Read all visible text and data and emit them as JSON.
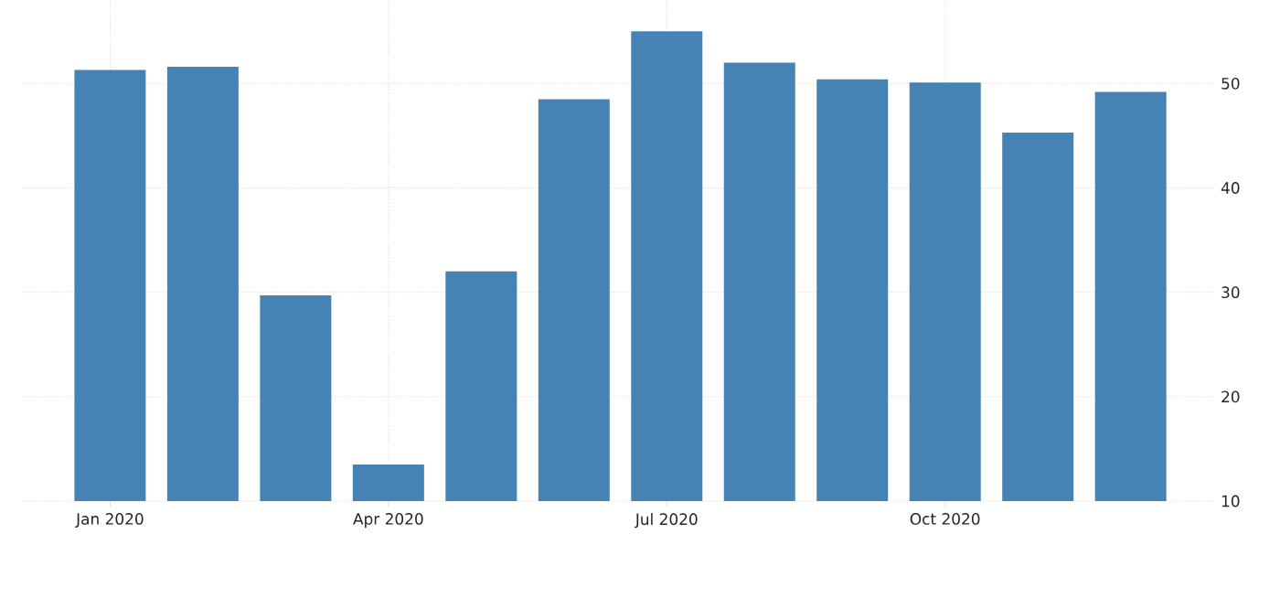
{
  "chart_data": {
    "type": "bar",
    "categories": [
      "Jan 2020",
      null,
      null,
      "Apr 2020",
      null,
      null,
      "Jul 2020",
      null,
      null,
      "Oct 2020",
      null,
      null
    ],
    "values": [
      51.3,
      51.6,
      29.7,
      13.5,
      32.0,
      48.5,
      55.0,
      52.0,
      50.4,
      50.1,
      45.3,
      49.2
    ],
    "color": "#4682b4",
    "ylim": [
      10,
      58
    ],
    "yticks": [
      10,
      20,
      30,
      40,
      50
    ],
    "grid": true
  }
}
